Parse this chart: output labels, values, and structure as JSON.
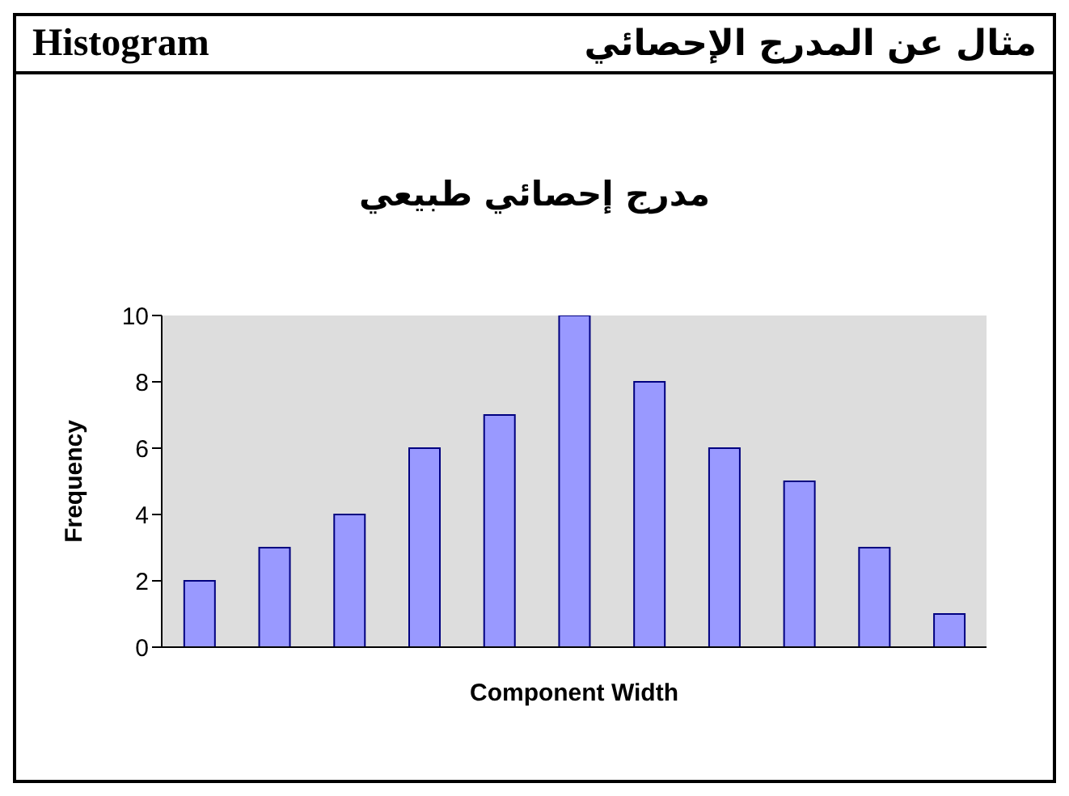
{
  "chart_data": {
    "type": "bar",
    "title": "مدرج إحصائي طبيعي",
    "annotations": [
      "Histogram",
      "مثال عن المدرج الإحصائي"
    ],
    "xlabel": "Component Width",
    "ylabel": "Frequency",
    "categories": [
      null,
      null,
      null,
      null,
      null,
      null,
      null,
      null,
      null,
      null,
      null
    ],
    "values": [
      2,
      3,
      4,
      6,
      7,
      10,
      8,
      6,
      5,
      3,
      1
    ],
    "color": "#9999ff",
    "ylim": [
      0,
      10
    ],
    "yticks": [
      0,
      2,
      4,
      6,
      8,
      10
    ],
    "grid": false
  }
}
